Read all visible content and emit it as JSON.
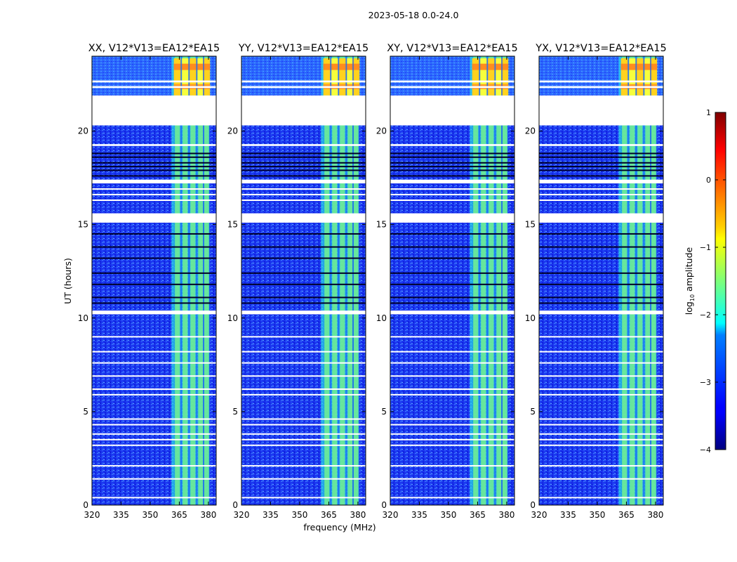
{
  "chart_data": {
    "type": "heatmap",
    "suptitle": "2023-05-18 0.0-24.0",
    "xlabel": "frequency (MHz)",
    "ylabel": "UT (hours)",
    "xlim": [
      320,
      384
    ],
    "ylim": [
      0,
      24
    ],
    "xticks": [
      320,
      335,
      350,
      365,
      380
    ],
    "xtick_labels": [
      "320",
      "335",
      "350",
      "365",
      "380"
    ],
    "yticks": [
      0,
      5,
      10,
      15,
      20
    ],
    "ytick_labels": [
      "0",
      "5",
      "10",
      "15",
      "20"
    ],
    "panels": [
      {
        "title": "XX, V12*V13=EA12*EA15"
      },
      {
        "title": "YY, V12*V13=EA12*EA15"
      },
      {
        "title": "XY, V12*V13=EA12*EA15"
      },
      {
        "title": "YX, V12*V13=EA12*EA15"
      }
    ],
    "rfi_band_mhz": [
      361,
      380.5
    ],
    "rfi_channels_mhz": [
      364,
      368,
      372,
      376,
      379
    ],
    "gaps_ut_hours": [
      [
        20.3,
        21.9
      ],
      [
        15.1,
        15.6
      ],
      [
        17.2,
        17.4
      ],
      [
        10.2,
        10.4
      ],
      [
        19.2,
        19.3
      ],
      [
        22.3,
        22.4
      ],
      [
        22.6,
        22.7
      ]
    ],
    "flagged_lines_ut_hours": [
      18.8,
      18.6,
      18.3,
      18.1,
      17.9,
      17.6,
      14.5,
      13.8,
      13.2,
      12.4,
      11.8,
      11.1,
      10.8
    ],
    "white_lines_ut_hours": [
      0.4,
      1.4,
      2.1,
      3.2,
      3.5,
      3.8,
      4.3,
      4.6,
      5.9,
      6.2,
      6.9,
      7.6,
      8.2,
      9.0,
      16.3,
      16.6,
      16.9
    ],
    "colorbar": {
      "label": "log",
      "label_sub": "10",
      "label_suffix": " amplitude",
      "ticks": [
        1,
        0,
        -1,
        -2,
        -3,
        -4
      ],
      "tick_labels": [
        "1",
        "0",
        "−1",
        "−2",
        "−3",
        "−4"
      ],
      "range": [
        -4,
        1
      ]
    }
  }
}
